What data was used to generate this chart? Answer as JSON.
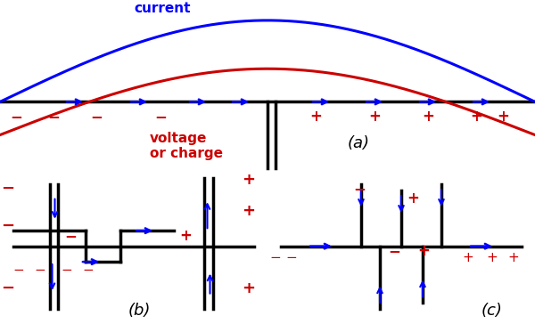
{
  "bg_color": "#ffffff",
  "current_color": "#0000ff",
  "voltage_color": "#cc0000",
  "antenna_color": "#000000",
  "title_a": "(a)",
  "title_b": "(b)",
  "title_c": "(c)"
}
